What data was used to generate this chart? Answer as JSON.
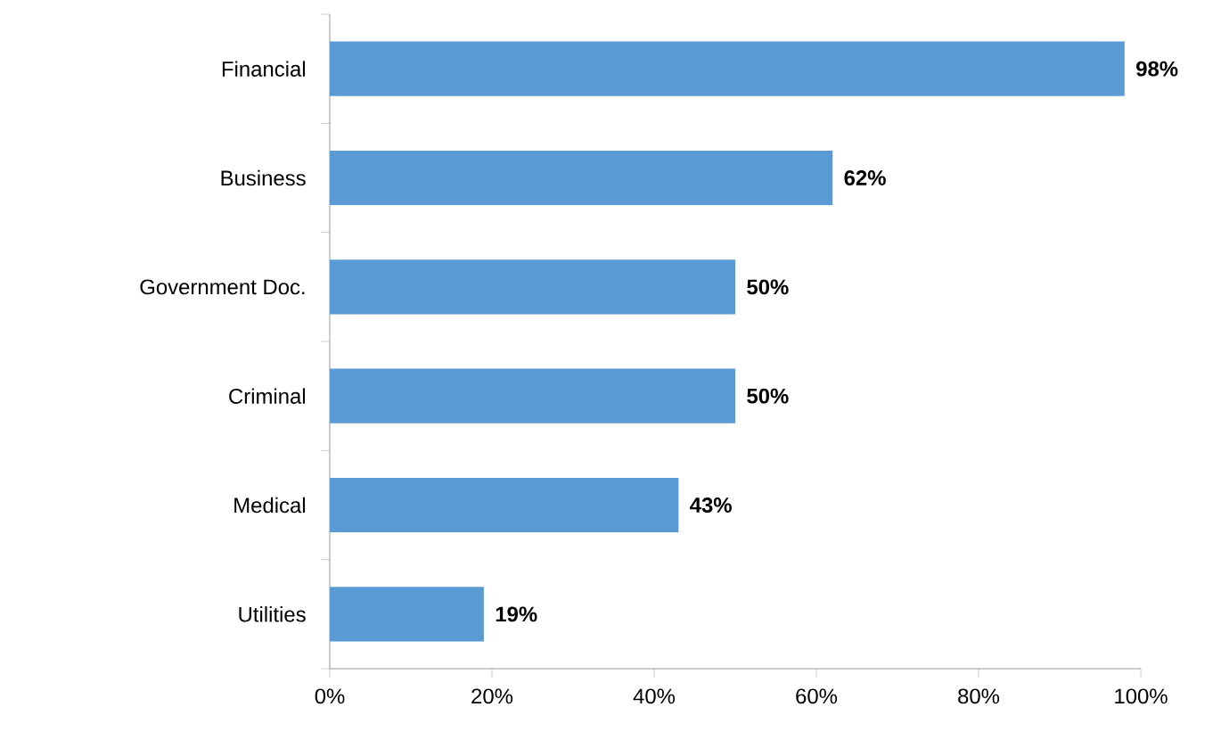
{
  "chart_data": {
    "type": "bar",
    "orientation": "horizontal",
    "categories": [
      "Financial",
      "Business",
      "Government Doc.",
      "Criminal",
      "Medical",
      "Utilities"
    ],
    "values": [
      98,
      62,
      50,
      50,
      43,
      19
    ],
    "value_labels": [
      "98%",
      "62%",
      "50%",
      "50%",
      "43%",
      "19%"
    ],
    "color": "#5b9bd5",
    "xlim": [
      0,
      100
    ],
    "xticks": [
      {
        "value": 0,
        "label": "0%"
      },
      {
        "value": 20,
        "label": "20%"
      },
      {
        "value": 40,
        "label": "40%"
      },
      {
        "value": 60,
        "label": "60%"
      },
      {
        "value": 80,
        "label": "80%"
      },
      {
        "value": 100,
        "label": "100%"
      }
    ]
  }
}
